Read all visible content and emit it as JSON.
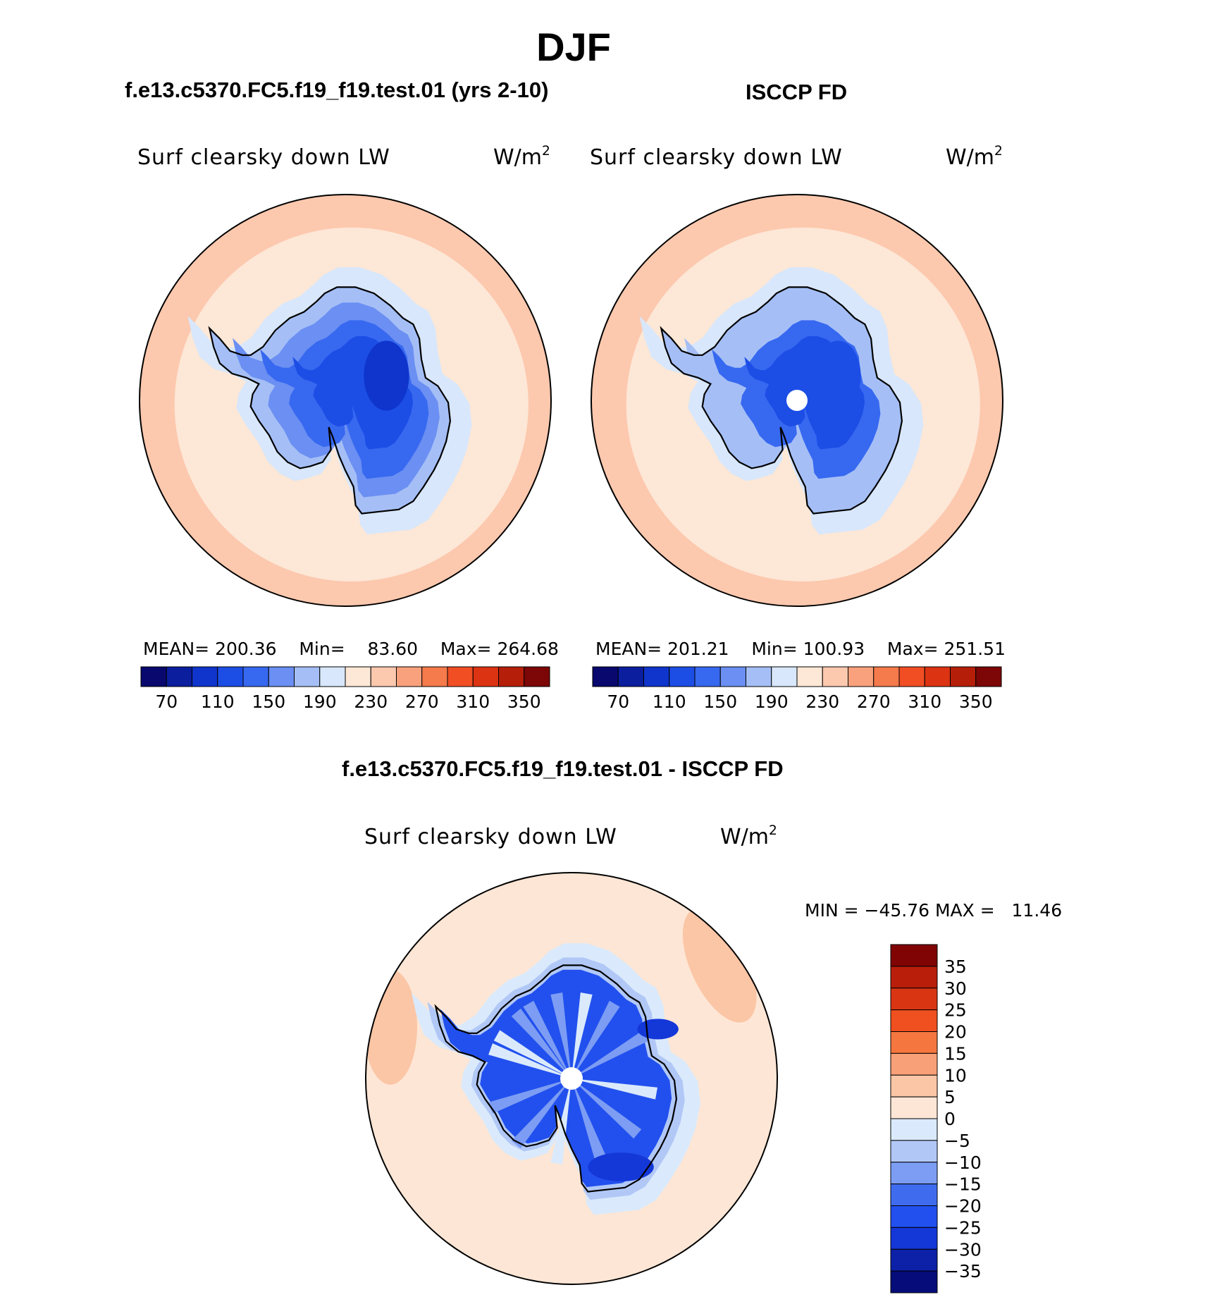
{
  "figure": {
    "season_title": "DJF",
    "bottom_title": "f.e13.c5370.FC5.f19_f19.test.01 - ISCCP FD"
  },
  "colors": {
    "coastline": "#000000",
    "pole_hole": "#ffffff",
    "abs_scale": [
      "#08086e",
      "#0a1e9e",
      "#0f35cc",
      "#1c4ee6",
      "#3768f0",
      "#6b8ff2",
      "#a5bff6",
      "#d8e7fb",
      "#fde7d6",
      "#fcc8ae",
      "#f9a17c",
      "#f57a4c",
      "#f14e24",
      "#dc3312",
      "#b51f0a",
      "#7d0606"
    ],
    "diff_scale": [
      "#060d7a",
      "#0c21a8",
      "#1437d8",
      "#2250ee",
      "#3f6cef",
      "#7c9df3",
      "#b1c8f7",
      "#daeafc",
      "#fde6d5",
      "#fbc6a6",
      "#f8a077",
      "#f5773f",
      "#f0501f",
      "#d93513",
      "#b81e0a",
      "#800404"
    ]
  },
  "chart_data": [
    {
      "type": "heatmap",
      "projection": "south-polar-stereographic",
      "title": "f.e13.c5370.FC5.f19_f19.test.01 (yrs 2-10)",
      "variable": "Surf clearsky down LW",
      "units_base": "W/m",
      "units_exp": "2",
      "stats": {
        "mean_label": "MEAN=",
        "mean": "200.36",
        "min_label": "Min=",
        "min": "83.60",
        "max_label": "Max=",
        "max": "264.68"
      },
      "field_levels": {
        "outer_ring": 245,
        "ocean": 225,
        "sea_ice": 205,
        "coast": 185,
        "slope": 165,
        "plateau": 135,
        "interior": 115,
        "minimum": 95
      },
      "colorbar": {
        "orientation": "horizontal",
        "tick_labels": [
          "70",
          "110",
          "150",
          "190",
          "230",
          "270",
          "310",
          "350"
        ],
        "levels": [
          50,
          70,
          90,
          110,
          130,
          150,
          170,
          190,
          210,
          230,
          250,
          270,
          290,
          310,
          330,
          350,
          370
        ]
      }
    },
    {
      "type": "heatmap",
      "projection": "south-polar-stereographic",
      "title": "ISCCP FD",
      "variable": "Surf clearsky down LW",
      "units_base": "W/m",
      "units_exp": "2",
      "stats": {
        "mean_label": "MEAN=",
        "mean": "201.21",
        "min_label": "Min=",
        "min": "100.93",
        "max_label": "Max=",
        "max": "251.51"
      },
      "field_levels": {
        "outer_ring": 240,
        "ocean": 225,
        "sea_ice": 205,
        "coast": 185,
        "slope": 170,
        "plateau": 145,
        "interior": 125,
        "minimum": 115
      },
      "colorbar": {
        "orientation": "horizontal",
        "tick_labels": [
          "70",
          "110",
          "150",
          "190",
          "230",
          "270",
          "310",
          "350"
        ],
        "levels": [
          50,
          70,
          90,
          110,
          130,
          150,
          170,
          190,
          210,
          230,
          250,
          270,
          290,
          310,
          330,
          350,
          370
        ]
      }
    },
    {
      "type": "heatmap",
      "projection": "south-polar-stereographic",
      "title": "f.e13.c5370.FC5.f19_f19.test.01 - ISCCP FD",
      "variable": "Surf clearsky down LW",
      "units_base": "W/m",
      "units_exp": "2",
      "stats": {
        "min_label": "MIN =",
        "min": "−45.76",
        "max_label": "MAX =",
        "max": "11.46"
      },
      "field_levels": {
        "ocean": 2,
        "warm_patch": 7,
        "sea_ice": -3,
        "coast": -8,
        "continent": -22,
        "streak": -14,
        "deep": -30
      },
      "colorbar": {
        "orientation": "vertical",
        "tick_labels": [
          "35",
          "30",
          "25",
          "20",
          "15",
          "10",
          "5",
          "0",
          "−5",
          "−10",
          "−15",
          "−20",
          "−25",
          "−30",
          "−35"
        ],
        "levels": [
          -40,
          -35,
          -30,
          -25,
          -20,
          -15,
          -10,
          -5,
          0,
          5,
          10,
          15,
          20,
          25,
          30,
          35,
          40
        ]
      }
    }
  ]
}
